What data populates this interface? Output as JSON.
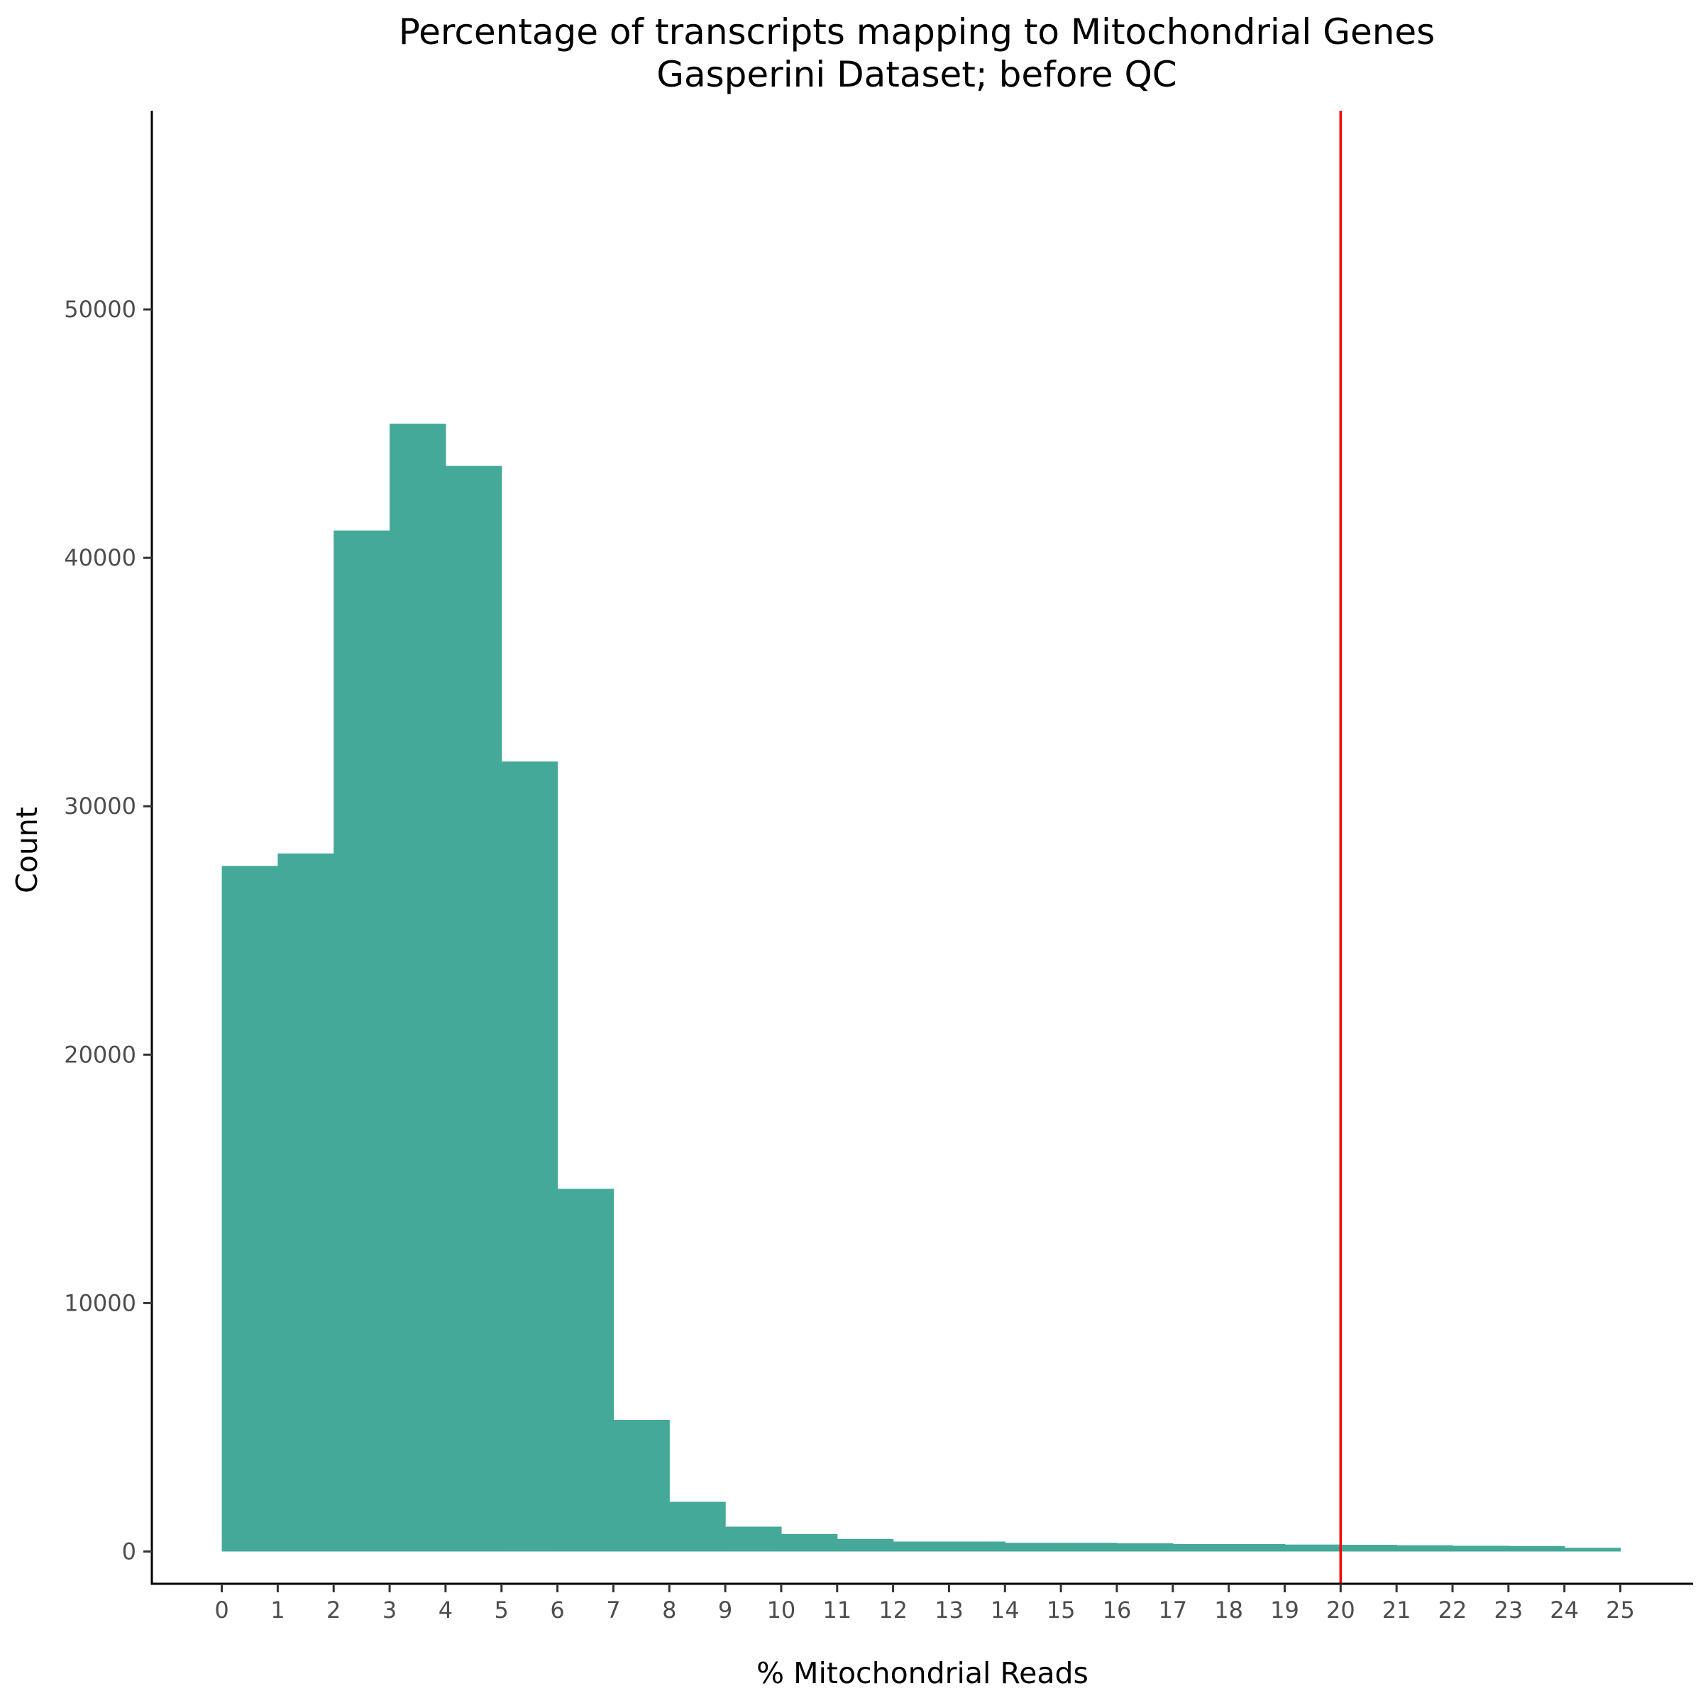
{
  "chart_data": {
    "type": "bar",
    "title": "Percentage of transcripts mapping to Mitochondrial Genes",
    "subtitle": "Gasperini Dataset; before QC",
    "xlabel": "% Mitochondrial Reads",
    "ylabel": "Count",
    "bin_edges": [
      0,
      1,
      2,
      3,
      4,
      5,
      6,
      7,
      8,
      9,
      10,
      11,
      12,
      13,
      14,
      15,
      16,
      17,
      18,
      19,
      20,
      21,
      22,
      23,
      24,
      25
    ],
    "values": [
      27600,
      28100,
      41100,
      45400,
      43700,
      31800,
      14600,
      5300,
      2000,
      1000,
      700,
      500,
      400,
      400,
      350,
      350,
      330,
      300,
      300,
      280,
      270,
      250,
      230,
      220,
      150
    ],
    "xticks": [
      "0",
      "1",
      "2",
      "3",
      "4",
      "5",
      "6",
      "7",
      "8",
      "9",
      "10",
      "11",
      "12",
      "13",
      "14",
      "15",
      "16",
      "17",
      "18",
      "19",
      "20",
      "21",
      "22",
      "23",
      "24",
      "25"
    ],
    "yticks": [
      "0",
      "10000",
      "20000",
      "30000",
      "40000",
      "50000"
    ],
    "xlim": [
      -1.25,
      26.3
    ],
    "ylim": [
      -1300,
      58000
    ],
    "threshold_line": 20,
    "bar_color": "#45a999",
    "threshold_color": "#ff0000",
    "grid": false,
    "legend": "none"
  }
}
